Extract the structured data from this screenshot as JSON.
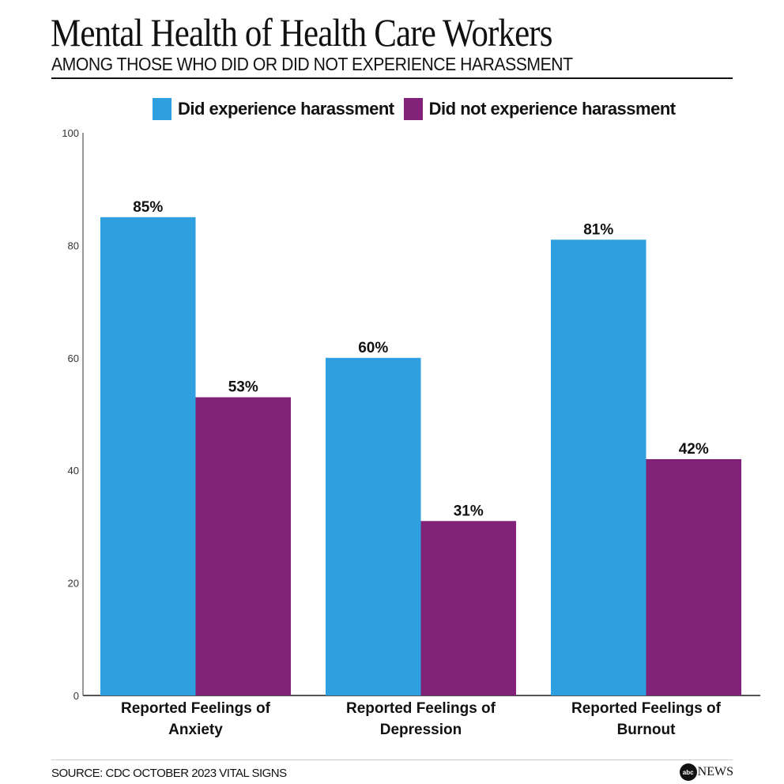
{
  "title": "Mental Health of Health Care Workers",
  "subtitle": "AMONG THOSE WHO DID OR DID NOT EXPERIENCE HARASSMENT",
  "source": "SOURCE: CDC OCTOBER 2023 VITAL SIGNS",
  "logo": {
    "mark": "abc",
    "text": "NEWS"
  },
  "chart_data": {
    "type": "bar",
    "title": "Mental Health of Health Care Workers",
    "subtitle": "AMONG THOSE WHO DID OR DID NOT EXPERIENCE HARASSMENT",
    "categories": [
      [
        "Reported Feelings of",
        "Anxiety"
      ],
      [
        "Reported Feelings of",
        "Depression"
      ],
      [
        "Reported Feelings of",
        "Burnout"
      ]
    ],
    "series": [
      {
        "name": "Did experience harassment",
        "color": "#2E9FDF",
        "values": [
          85,
          60,
          81
        ],
        "labels": [
          "85%",
          "60%",
          "81%"
        ]
      },
      {
        "name": "Did not experience harassment",
        "color": "#822178",
        "values": [
          53,
          31,
          42
        ],
        "labels": [
          "53%",
          "31%",
          "42%"
        ]
      }
    ],
    "ylim": [
      0,
      100
    ],
    "yticks": [
      0,
      20,
      40,
      60,
      80,
      100
    ],
    "grid": false,
    "legend": "top"
  }
}
